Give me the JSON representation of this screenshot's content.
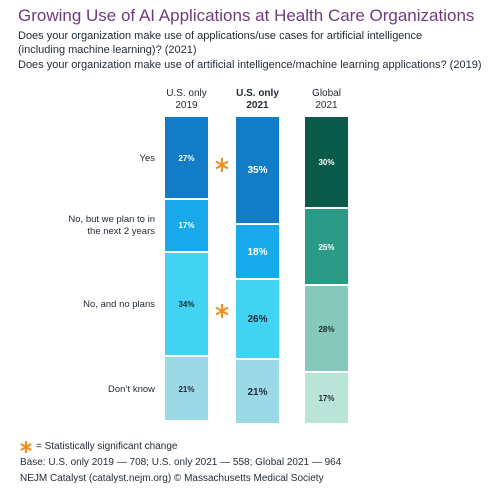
{
  "chart_data": {
    "type": "stacked_bar",
    "title": "Growing Use of AI Applications at Health Care Organizations",
    "subtitle": [
      "Does your organization make use of applications/use cases for artificial intelligence",
      "(including machine learning)? (2021)",
      "Does your organization make use of artificial intelligence/machine learning applications? (2019)"
    ],
    "categories": [
      "U.S. only\n2019",
      "U.S. only\n2021",
      "Global\n2021"
    ],
    "highlight_category": 1,
    "series": [
      {
        "name": "Yes",
        "values": [
          27,
          35,
          30
        ],
        "value_labels": [
          "27%",
          "35%",
          "30%"
        ],
        "colors": [
          "#137cc6",
          "#137cc6",
          "#0b5b4b"
        ],
        "label_color": "#ffffff",
        "significant": true
      },
      {
        "name": "No, but we plan to in\nthe next 2 years",
        "values": [
          17,
          18,
          25
        ],
        "value_labels": [
          "17%",
          "18%",
          "25%"
        ],
        "colors": [
          "#17a9ea",
          "#17a9ea",
          "#2b9a86"
        ],
        "label_color": "#ffffff",
        "significant": false
      },
      {
        "name": "No, and no plans",
        "values": [
          34,
          26,
          28
        ],
        "value_labels": [
          "34%",
          "26%",
          "28%"
        ],
        "colors": [
          "#41d3f1",
          "#41d3f1",
          "#86c8b9"
        ],
        "label_color": "#1f2a36",
        "significant": true
      },
      {
        "name": "Don’t know",
        "values": [
          21,
          21,
          17
        ],
        "value_labels": [
          "21%",
          "21%",
          "17%"
        ],
        "colors": [
          "#9cd9e7",
          "#9cd9e7",
          "#bbe4d9"
        ],
        "label_color": "#1f2a36",
        "significant": false
      }
    ],
    "significance_note": "= Statistically significant change",
    "base_note": "Base: U.S. only 2019 — 708; U.S. only 2021 — 558; Global 2021 — 964",
    "source": "NEJM Catalyst (catalyst.nejm.org) © Massachusetts Medical Society"
  }
}
